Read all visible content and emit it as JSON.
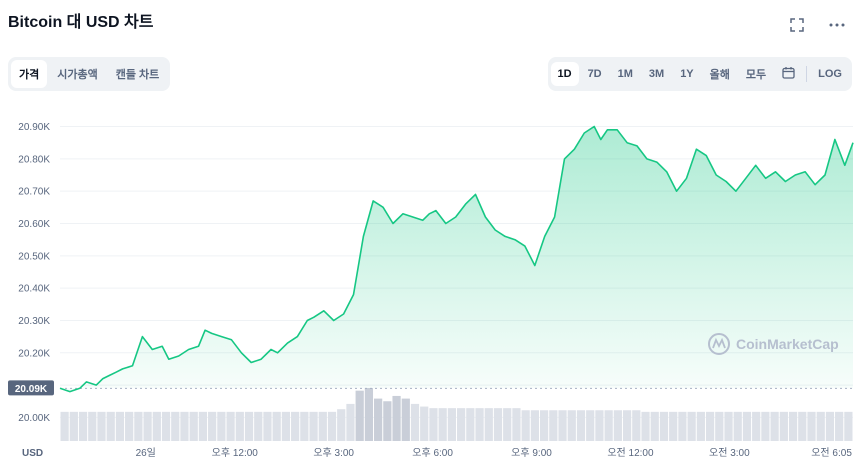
{
  "title": "Bitcoin 대 USD 차트",
  "icons": {
    "fullscreen": "fullscreen-icon",
    "more": "more-icon"
  },
  "view_tabs": [
    {
      "label": "가격",
      "active": true
    },
    {
      "label": "시가총액",
      "active": false
    },
    {
      "label": "캔들 차트",
      "active": false
    }
  ],
  "range_tabs": [
    {
      "label": "1D",
      "active": true
    },
    {
      "label": "7D",
      "active": false
    },
    {
      "label": "1M",
      "active": false
    },
    {
      "label": "3M",
      "active": false
    },
    {
      "label": "1Y",
      "active": false
    },
    {
      "label": "올해",
      "active": false
    },
    {
      "label": "모두",
      "active": false
    }
  ],
  "calendar_icon": "calendar-icon",
  "log_label": "LOG",
  "watermark": "CoinMarketCap",
  "colors": {
    "line": "#16c784",
    "line_down": "#ea3943",
    "volume": "#dde1e8",
    "volume_high": "#c9ced8",
    "grid": "#eff2f5",
    "current_bg": "#58667e"
  },
  "chart_data": {
    "type": "line",
    "currency_label": "USD",
    "current_price_label": "20.09K",
    "y_ticks": [
      "20.00K",
      "20.10K",
      "20.20K",
      "20.30K",
      "20.40K",
      "20.50K",
      "20.60K",
      "20.70K",
      "20.80K",
      "20.90K"
    ],
    "y_tick_values": [
      20000,
      20100,
      20200,
      20300,
      20400,
      20500,
      20600,
      20700,
      20800,
      20900
    ],
    "x_ticks": [
      {
        "label": "26일",
        "t": 0.3
      },
      {
        "label": "오후 12:00",
        "t": 3
      },
      {
        "label": "오후 3:00",
        "t": 6
      },
      {
        "label": "오후 6:00",
        "t": 9
      },
      {
        "label": "오후 9:00",
        "t": 12
      },
      {
        "label": "오전 12:00",
        "t": 15
      },
      {
        "label": "오전 3:00",
        "t": 18
      },
      {
        "label": "오전 6:05",
        "t": 21.1
      }
    ],
    "ylim": [
      19992,
      20945
    ],
    "xlim": [
      -2.3,
      21.75
    ],
    "reference_price": 20090,
    "x": [
      -2.3,
      -2.0,
      -1.7,
      -1.5,
      -1.2,
      -1.0,
      -0.8,
      -0.6,
      -0.4,
      -0.1,
      0.2,
      0.5,
      0.8,
      1.0,
      1.3,
      1.6,
      1.9,
      2.1,
      2.3,
      2.6,
      2.9,
      3.2,
      3.5,
      3.8,
      4.1,
      4.3,
      4.6,
      4.9,
      5.2,
      5.4,
      5.7,
      6.0,
      6.3,
      6.6,
      6.9,
      7.2,
      7.5,
      7.8,
      8.1,
      8.4,
      8.7,
      8.9,
      9.1,
      9.4,
      9.7,
      10.0,
      10.3,
      10.6,
      10.9,
      11.2,
      11.5,
      11.8,
      12.1,
      12.4,
      12.7,
      13.0,
      13.3,
      13.6,
      13.9,
      14.1,
      14.3,
      14.6,
      14.9,
      15.2,
      15.5,
      15.8,
      16.1,
      16.4,
      16.7,
      17.0,
      17.3,
      17.6,
      17.9,
      18.2,
      18.5,
      18.8,
      19.1,
      19.4,
      19.7,
      20.0,
      20.3,
      20.6,
      20.9,
      21.2,
      21.5,
      21.75
    ],
    "y": [
      20090,
      20080,
      20090,
      20110,
      20100,
      20120,
      20130,
      20140,
      20150,
      20160,
      20250,
      20210,
      20220,
      20180,
      20190,
      20210,
      20220,
      20270,
      20260,
      20250,
      20240,
      20200,
      20170,
      20180,
      20210,
      20200,
      20230,
      20250,
      20300,
      20310,
      20330,
      20300,
      20320,
      20380,
      20560,
      20670,
      20650,
      20600,
      20630,
      20620,
      20610,
      20630,
      20640,
      20600,
      20620,
      20660,
      20690,
      20620,
      20580,
      20560,
      20550,
      20530,
      20470,
      20560,
      20620,
      20800,
      20830,
      20880,
      20900,
      20860,
      20890,
      20890,
      20850,
      20840,
      20800,
      20790,
      20760,
      20700,
      20740,
      20830,
      20810,
      20750,
      20730,
      20700,
      20740,
      20780,
      20740,
      20760,
      20730,
      20750,
      20760,
      20720,
      20750,
      20860,
      20780,
      20850
    ],
    "volume": [
      0.55,
      0.55,
      0.55,
      0.55,
      0.55,
      0.55,
      0.55,
      0.55,
      0.55,
      0.55,
      0.55,
      0.55,
      0.55,
      0.55,
      0.55,
      0.55,
      0.55,
      0.55,
      0.55,
      0.55,
      0.55,
      0.55,
      0.55,
      0.55,
      0.55,
      0.55,
      0.55,
      0.55,
      0.55,
      0.55,
      0.6,
      0.7,
      0.95,
      1.0,
      0.8,
      0.75,
      0.85,
      0.8,
      0.7,
      0.65,
      0.62,
      0.62,
      0.62,
      0.62,
      0.62,
      0.62,
      0.62,
      0.62,
      0.62,
      0.62,
      0.58,
      0.58,
      0.58,
      0.58,
      0.58,
      0.58,
      0.58,
      0.58,
      0.58,
      0.58,
      0.58,
      0.58,
      0.58,
      0.55,
      0.55,
      0.55,
      0.55,
      0.55,
      0.55,
      0.55,
      0.55,
      0.55,
      0.55,
      0.55,
      0.55,
      0.55,
      0.55,
      0.55,
      0.55,
      0.55,
      0.55,
      0.55,
      0.55,
      0.55,
      0.55,
      0.55
    ]
  }
}
